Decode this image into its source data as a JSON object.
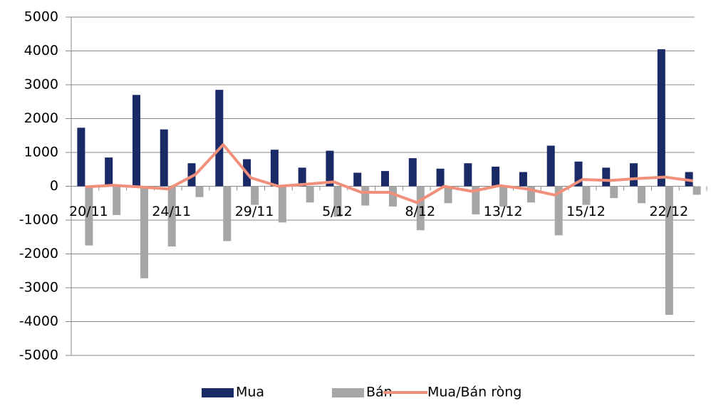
{
  "chart_data": {
    "type": "bar",
    "categories": [
      "20/11",
      null,
      null,
      "24/11",
      null,
      null,
      "29/11",
      null,
      null,
      "5/12",
      null,
      null,
      "8/12",
      null,
      null,
      "13/12",
      null,
      null,
      "15/12",
      null,
      null,
      "22/12",
      null
    ],
    "series": [
      {
        "name": "Mua",
        "type": "bar",
        "color": "#1a2a66",
        "values": [
          1730,
          850,
          2700,
          1680,
          680,
          2850,
          800,
          1080,
          550,
          1050,
          400,
          450,
          830,
          520,
          680,
          580,
          420,
          1200,
          730,
          550,
          680,
          4050,
          420
        ]
      },
      {
        "name": "Bán",
        "type": "bar",
        "color": "#a6a6a6",
        "values": [
          -1750,
          -850,
          -2720,
          -1780,
          -320,
          -1620,
          -550,
          -1070,
          -480,
          -900,
          -570,
          -600,
          -1300,
          -500,
          -830,
          -600,
          -480,
          -1450,
          -550,
          -350,
          -500,
          -3800,
          -250
        ]
      },
      {
        "name": "Mua/Bán ròng",
        "type": "line",
        "color": "#f0907a",
        "values": [
          -20,
          30,
          -20,
          -80,
          350,
          1230,
          250,
          0,
          60,
          130,
          -180,
          -180,
          -480,
          0,
          -150,
          20,
          -80,
          -260,
          200,
          170,
          230,
          270,
          160
        ]
      }
    ],
    "ylim": [
      -5000,
      5000
    ],
    "yticks": [
      -5000,
      -4000,
      -3000,
      -2000,
      -1000,
      0,
      1000,
      2000,
      3000,
      4000,
      5000
    ],
    "grid": true,
    "legend": "bottom"
  }
}
